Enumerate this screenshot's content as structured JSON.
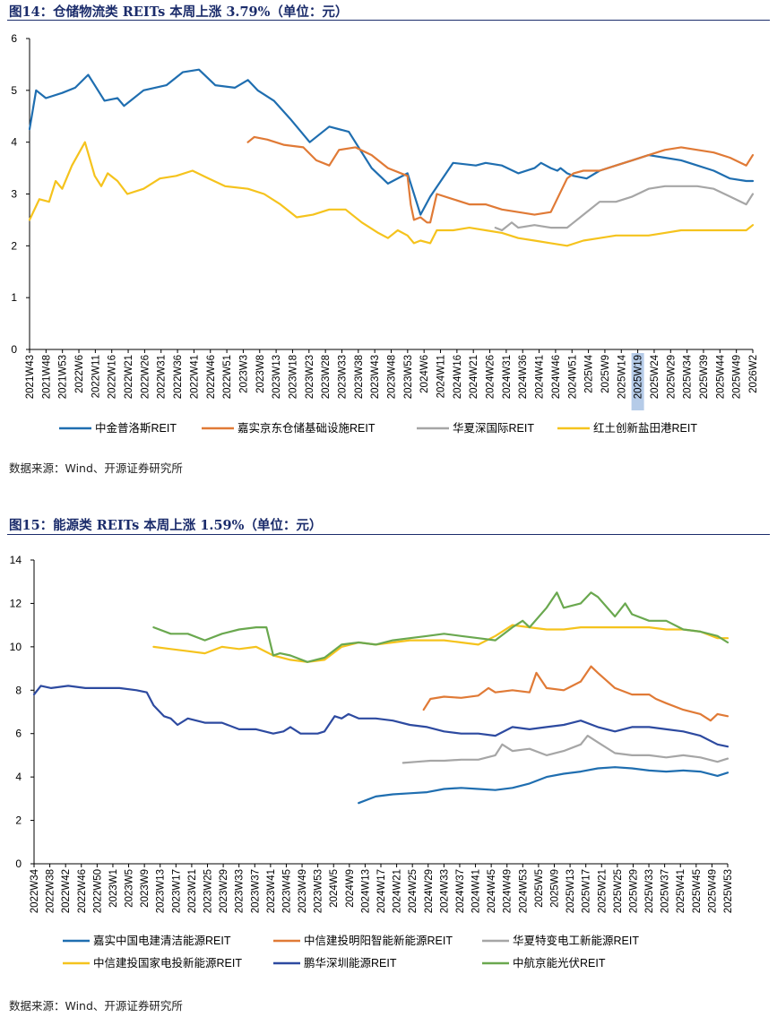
{
  "figure14": {
    "caption": "图14：仓储物流类 REITs 本周上涨 3.79%（单位：元）",
    "source": "数据来源：Wind、开源证券研究所"
  },
  "figure15": {
    "caption": "图15：能源类 REITs 本周上涨 1.59%（单位：元）",
    "source": "数据来源：Wind、开源证券研究所"
  },
  "chart_data": [
    {
      "type": "line",
      "title": "仓储物流类 REITs 本周上涨 3.79%（单位：元）",
      "ylim": [
        0,
        6
      ],
      "yticks": [
        0,
        1,
        2,
        3,
        4,
        5,
        6
      ],
      "xlim": [
        0,
        222
      ],
      "x_tick_labels": [
        "2021W43",
        "2021W48",
        "2021W53",
        "2022W6",
        "2022W11",
        "2022W16",
        "2022W21",
        "2022W26",
        "2022W31",
        "2022W36",
        "2022W41",
        "2022W46",
        "2022W51",
        "2023W3",
        "2023W8",
        "2023W13",
        "2023W18",
        "2023W23",
        "2023W28",
        "2023W33",
        "2023W38",
        "2023W43",
        "2023W48",
        "2023W53",
        "2024W6",
        "2024W11",
        "2024W16",
        "2024W21",
        "2024W26",
        "2024W31",
        "2024W36",
        "2024W41",
        "2024W46",
        "2024W51",
        "2025W4",
        "2025W9",
        "2025W14",
        "2025W19",
        "2025W24",
        "2025W29",
        "2025W34",
        "2025W39",
        "2025W44",
        "2025W49",
        "2026W2"
      ],
      "highlighted_tick": "2025W19",
      "legend_position": "bottom",
      "series": [
        {
          "name": "中金普洛斯REIT",
          "color": "#1f6eb0",
          "x": [
            0,
            2,
            5,
            10,
            14,
            18,
            20,
            23,
            27,
            29,
            31,
            35,
            42,
            47,
            52,
            57,
            63,
            67,
            70,
            75,
            80,
            86,
            92,
            98,
            105,
            110,
            116,
            120,
            123,
            130,
            137,
            140,
            145,
            150,
            155,
            157,
            160,
            162,
            163,
            165,
            167,
            171,
            175,
            180,
            185,
            190,
            195,
            200,
            205,
            210,
            215,
            220,
            222
          ],
          "y": [
            4.25,
            5.0,
            4.85,
            4.95,
            5.05,
            5.3,
            5.1,
            4.8,
            4.85,
            4.7,
            4.8,
            5.0,
            5.1,
            5.35,
            5.4,
            5.1,
            5.05,
            5.2,
            5.0,
            4.8,
            4.45,
            4.0,
            4.3,
            4.2,
            3.5,
            3.2,
            3.4,
            2.6,
            2.95,
            3.6,
            3.55,
            3.6,
            3.55,
            3.4,
            3.5,
            3.6,
            3.5,
            3.45,
            3.5,
            3.4,
            3.35,
            3.3,
            3.45,
            3.55,
            3.65,
            3.75,
            3.7,
            3.65,
            3.55,
            3.45,
            3.3,
            3.25,
            3.25
          ]
        },
        {
          "name": "嘉实京东仓储基础设施REIT",
          "color": "#e07a36",
          "x": [
            67,
            69,
            73,
            78,
            84,
            88,
            92,
            95,
            100,
            105,
            110,
            116,
            117,
            118,
            120,
            122,
            123,
            125,
            130,
            135,
            140,
            145,
            150,
            155,
            160,
            165,
            167,
            170,
            175,
            180,
            185,
            190,
            195,
            200,
            205,
            210,
            215,
            220,
            222
          ],
          "y": [
            4.0,
            4.1,
            4.05,
            3.95,
            3.9,
            3.65,
            3.55,
            3.85,
            3.9,
            3.75,
            3.5,
            3.35,
            2.8,
            2.5,
            2.55,
            2.45,
            2.45,
            3.0,
            2.9,
            2.8,
            2.8,
            2.7,
            2.65,
            2.6,
            2.65,
            3.3,
            3.4,
            3.45,
            3.45,
            3.55,
            3.65,
            3.75,
            3.85,
            3.9,
            3.85,
            3.8,
            3.7,
            3.55,
            3.75
          ]
        },
        {
          "name": "华夏深国际REIT",
          "color": "#a6a6a6",
          "x": [
            143,
            145,
            148,
            150,
            155,
            160,
            165,
            167,
            170,
            175,
            180,
            185,
            190,
            195,
            200,
            205,
            210,
            215,
            220,
            222
          ],
          "y": [
            2.35,
            2.3,
            2.45,
            2.35,
            2.4,
            2.35,
            2.35,
            2.45,
            2.6,
            2.85,
            2.85,
            2.95,
            3.1,
            3.15,
            3.15,
            3.15,
            3.1,
            2.95,
            2.8,
            3.0
          ]
        },
        {
          "name": "红土创新盐田港REIT",
          "color": "#f5c31d",
          "x": [
            0,
            3,
            6,
            8,
            10,
            13,
            17,
            20,
            22,
            24,
            27,
            30,
            35,
            40,
            45,
            50,
            55,
            60,
            67,
            72,
            77,
            82,
            87,
            92,
            97,
            102,
            107,
            110,
            113,
            116,
            118,
            120,
            123,
            125,
            130,
            135,
            140,
            145,
            150,
            155,
            160,
            165,
            170,
            175,
            180,
            185,
            190,
            195,
            200,
            205,
            210,
            215,
            220,
            222
          ],
          "y": [
            2.5,
            2.9,
            2.85,
            3.25,
            3.1,
            3.55,
            4.0,
            3.35,
            3.15,
            3.4,
            3.25,
            3.0,
            3.1,
            3.3,
            3.35,
            3.45,
            3.3,
            3.15,
            3.1,
            3.0,
            2.8,
            2.55,
            2.6,
            2.7,
            2.7,
            2.45,
            2.25,
            2.15,
            2.3,
            2.2,
            2.05,
            2.1,
            2.05,
            2.3,
            2.3,
            2.35,
            2.3,
            2.25,
            2.15,
            2.1,
            2.05,
            2.0,
            2.1,
            2.15,
            2.2,
            2.2,
            2.2,
            2.25,
            2.3,
            2.3,
            2.3,
            2.3,
            2.3,
            2.4
          ]
        }
      ]
    },
    {
      "type": "line",
      "title": "能源类 REITs 本周上涨 1.59%（单位：元）",
      "ylim": [
        0,
        14
      ],
      "yticks": [
        0,
        2,
        4,
        6,
        8,
        10,
        12,
        14
      ],
      "xlim": [
        0,
        203
      ],
      "x_tick_labels": [
        "2022W34",
        "2022W38",
        "2022W42",
        "2022W46",
        "2022W50",
        "2023W1",
        "2023W5",
        "2023W9",
        "2023W13",
        "2023W17",
        "2023W21",
        "2023W25",
        "2023W29",
        "2023W33",
        "2023W37",
        "2023W41",
        "2023W45",
        "2023W49",
        "2023W53",
        "2024W5",
        "2024W9",
        "2024W13",
        "2024W17",
        "2024W21",
        "2024W25",
        "2024W29",
        "2024W33",
        "2024W37",
        "2024W41",
        "2024W45",
        "2024W49",
        "2024W53",
        "2025W5",
        "2025W9",
        "2025W13",
        "2025W17",
        "2025W21",
        "2025W25",
        "2025W29",
        "2025W33",
        "2025W37",
        "2025W41",
        "2025W45",
        "2025W49",
        "2025W53"
      ],
      "legend_position": "bottom",
      "series": [
        {
          "name": "嘉实中国电建清洁能源REIT",
          "color": "#1f6eb0",
          "x": [
            95,
            100,
            105,
            110,
            115,
            120,
            125,
            130,
            135,
            140,
            145,
            150,
            155,
            160,
            165,
            170,
            175,
            180,
            185,
            190,
            195,
            200,
            203
          ],
          "y": [
            2.8,
            3.1,
            3.2,
            3.25,
            3.3,
            3.45,
            3.5,
            3.45,
            3.4,
            3.5,
            3.7,
            4.0,
            4.15,
            4.25,
            4.4,
            4.45,
            4.4,
            4.3,
            4.25,
            4.3,
            4.25,
            4.05,
            4.2
          ]
        },
        {
          "name": "中信建投明阳智能新能源REIT",
          "color": "#e07a36",
          "x": [
            114,
            116,
            120,
            125,
            130,
            133,
            135,
            140,
            145,
            147,
            150,
            155,
            160,
            163,
            165,
            170,
            175,
            180,
            182,
            185,
            190,
            195,
            198,
            200,
            203
          ],
          "y": [
            7.1,
            7.6,
            7.7,
            7.65,
            7.75,
            8.1,
            7.9,
            8.0,
            7.9,
            8.8,
            8.1,
            8.0,
            8.4,
            9.1,
            8.8,
            8.1,
            7.8,
            7.8,
            7.6,
            7.4,
            7.1,
            6.9,
            6.6,
            6.9,
            6.8
          ]
        },
        {
          "name": "华夏特变电工新能源REIT",
          "color": "#a6a6a6",
          "x": [
            108,
            112,
            116,
            120,
            125,
            130,
            135,
            137,
            140,
            145,
            150,
            155,
            160,
            162,
            165,
            170,
            175,
            180,
            185,
            190,
            195,
            200,
            203
          ],
          "y": [
            4.65,
            4.7,
            4.75,
            4.75,
            4.8,
            4.8,
            5.0,
            5.5,
            5.2,
            5.3,
            5.0,
            5.2,
            5.5,
            5.9,
            5.6,
            5.1,
            5.0,
            5.0,
            4.9,
            5.0,
            4.9,
            4.7,
            4.85
          ]
        },
        {
          "name": "中信建投国家电投新能源REIT",
          "color": "#f5c31d",
          "x": [
            35,
            40,
            45,
            50,
            55,
            60,
            65,
            70,
            75,
            80,
            85,
            90,
            95,
            100,
            105,
            110,
            115,
            120,
            125,
            130,
            135,
            140,
            145,
            150,
            155,
            160,
            165,
            170,
            175,
            180,
            185,
            190,
            195,
            200,
            203
          ],
          "y": [
            10.0,
            9.9,
            9.8,
            9.7,
            10.0,
            9.9,
            10.0,
            9.6,
            9.4,
            9.3,
            9.4,
            10.0,
            10.2,
            10.1,
            10.2,
            10.3,
            10.3,
            10.3,
            10.2,
            10.1,
            10.5,
            11.0,
            10.9,
            10.8,
            10.8,
            10.9,
            10.9,
            10.9,
            10.9,
            10.9,
            10.8,
            10.8,
            10.7,
            10.4,
            10.4
          ]
        },
        {
          "name": "鹏华深圳能源REIT",
          "color": "#2d4aa0",
          "x": [
            0,
            2,
            5,
            10,
            15,
            20,
            25,
            30,
            33,
            35,
            38,
            40,
            42,
            45,
            50,
            55,
            60,
            65,
            70,
            73,
            75,
            78,
            80,
            83,
            85,
            88,
            90,
            92,
            95,
            100,
            105,
            110,
            115,
            120,
            125,
            130,
            135,
            140,
            145,
            150,
            155,
            160,
            165,
            170,
            175,
            180,
            185,
            190,
            195,
            200,
            203
          ],
          "y": [
            7.8,
            8.2,
            8.1,
            8.2,
            8.1,
            8.1,
            8.1,
            8.0,
            7.9,
            7.3,
            6.8,
            6.7,
            6.4,
            6.7,
            6.5,
            6.5,
            6.2,
            6.2,
            6.0,
            6.1,
            6.3,
            6.0,
            6.0,
            6.0,
            6.1,
            6.8,
            6.7,
            6.9,
            6.7,
            6.7,
            6.6,
            6.4,
            6.3,
            6.1,
            6.0,
            6.0,
            5.9,
            6.3,
            6.2,
            6.3,
            6.4,
            6.6,
            6.3,
            6.1,
            6.3,
            6.3,
            6.2,
            6.1,
            5.9,
            5.5,
            5.4
          ]
        },
        {
          "name": "中航京能光伏REIT",
          "color": "#6aa84f",
          "x": [
            35,
            40,
            45,
            50,
            55,
            60,
            65,
            68,
            70,
            72,
            75,
            80,
            85,
            90,
            95,
            100,
            105,
            110,
            115,
            120,
            125,
            130,
            135,
            140,
            143,
            145,
            150,
            153,
            155,
            160,
            163,
            165,
            170,
            173,
            175,
            180,
            185,
            190,
            195,
            200,
            203
          ],
          "y": [
            10.9,
            10.6,
            10.6,
            10.3,
            10.6,
            10.8,
            10.9,
            10.9,
            9.6,
            9.7,
            9.6,
            9.3,
            9.5,
            10.1,
            10.2,
            10.1,
            10.3,
            10.4,
            10.5,
            10.6,
            10.5,
            10.4,
            10.3,
            10.9,
            11.2,
            10.9,
            11.8,
            12.5,
            11.8,
            12.0,
            12.5,
            12.3,
            11.4,
            12.0,
            11.5,
            11.2,
            11.2,
            10.8,
            10.7,
            10.5,
            10.2
          ]
        }
      ]
    }
  ]
}
